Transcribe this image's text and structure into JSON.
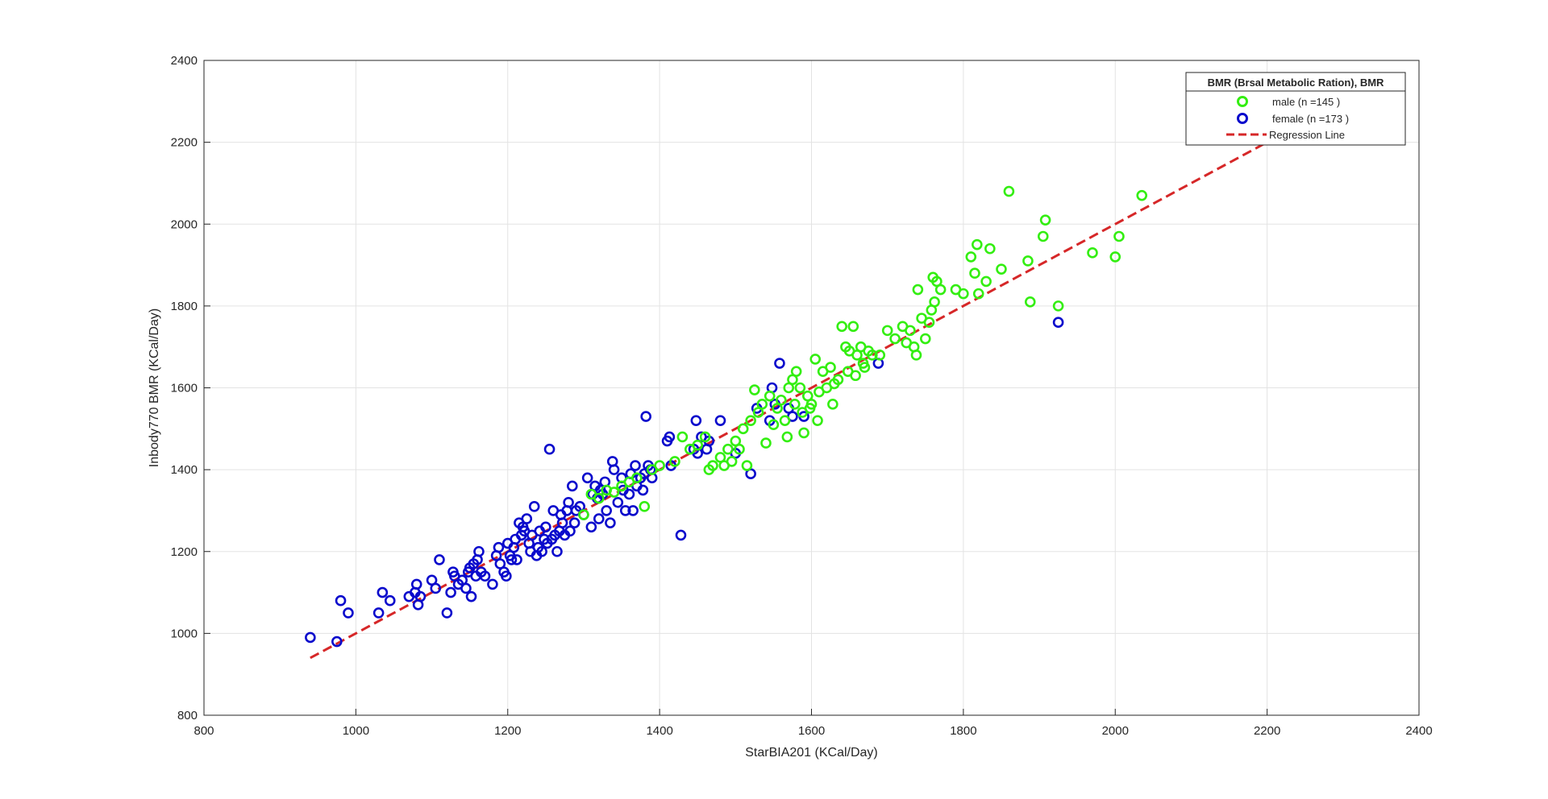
{
  "chart_data": {
    "type": "scatter",
    "xlabel": "StarBIA201 (KCal/Day)",
    "ylabel": "Inbody770 BMR (KCal/Day)",
    "xlim": [
      800,
      2400
    ],
    "ylim": [
      800,
      2400
    ],
    "xticks": [
      "800",
      "1000",
      "1200",
      "1400",
      "1600",
      "1800",
      "2000",
      "2200",
      "2400"
    ],
    "yticks": [
      "800",
      "1000",
      "1200",
      "1400",
      "1600",
      "1800",
      "2000",
      "2200",
      "2400"
    ],
    "grid": true,
    "legend": {
      "title": "BMR  (Brsal Metabolic Ration), BMR",
      "placement": "top-right"
    },
    "regression": {
      "name": "Regression Line",
      "color": "#d62728",
      "x": [
        940,
        2200
      ],
      "y": [
        940,
        2200
      ]
    },
    "series": [
      {
        "name": "male (n =145 )",
        "color": "#33ee11",
        "marker": "circle",
        "points": [
          [
            1300,
            1290
          ],
          [
            1310,
            1340
          ],
          [
            1320,
            1330
          ],
          [
            1330,
            1350
          ],
          [
            1340,
            1345
          ],
          [
            1350,
            1360
          ],
          [
            1360,
            1370
          ],
          [
            1370,
            1380
          ],
          [
            1380,
            1310
          ],
          [
            1390,
            1400
          ],
          [
            1400,
            1410
          ],
          [
            1420,
            1420
          ],
          [
            1430,
            1480
          ],
          [
            1440,
            1450
          ],
          [
            1450,
            1460
          ],
          [
            1460,
            1480
          ],
          [
            1465,
            1400
          ],
          [
            1470,
            1410
          ],
          [
            1480,
            1430
          ],
          [
            1485,
            1410
          ],
          [
            1490,
            1450
          ],
          [
            1495,
            1420
          ],
          [
            1500,
            1470
          ],
          [
            1505,
            1450
          ],
          [
            1510,
            1500
          ],
          [
            1515,
            1410
          ],
          [
            1520,
            1520
          ],
          [
            1525,
            1595
          ],
          [
            1530,
            1540
          ],
          [
            1535,
            1560
          ],
          [
            1540,
            1465
          ],
          [
            1545,
            1580
          ],
          [
            1550,
            1510
          ],
          [
            1555,
            1550
          ],
          [
            1560,
            1570
          ],
          [
            1565,
            1520
          ],
          [
            1568,
            1480
          ],
          [
            1570,
            1600
          ],
          [
            1575,
            1620
          ],
          [
            1578,
            1560
          ],
          [
            1580,
            1640
          ],
          [
            1585,
            1600
          ],
          [
            1588,
            1540
          ],
          [
            1590,
            1490
          ],
          [
            1595,
            1580
          ],
          [
            1598,
            1550
          ],
          [
            1600,
            1560
          ],
          [
            1605,
            1670
          ],
          [
            1608,
            1520
          ],
          [
            1610,
            1590
          ],
          [
            1615,
            1640
          ],
          [
            1620,
            1600
          ],
          [
            1625,
            1650
          ],
          [
            1628,
            1560
          ],
          [
            1630,
            1610
          ],
          [
            1635,
            1620
          ],
          [
            1640,
            1750
          ],
          [
            1645,
            1700
          ],
          [
            1648,
            1640
          ],
          [
            1650,
            1690
          ],
          [
            1655,
            1750
          ],
          [
            1658,
            1630
          ],
          [
            1660,
            1680
          ],
          [
            1665,
            1700
          ],
          [
            1668,
            1660
          ],
          [
            1670,
            1650
          ],
          [
            1675,
            1690
          ],
          [
            1680,
            1680
          ],
          [
            1690,
            1680
          ],
          [
            1700,
            1740
          ],
          [
            1710,
            1720
          ],
          [
            1720,
            1750
          ],
          [
            1725,
            1710
          ],
          [
            1730,
            1740
          ],
          [
            1735,
            1700
          ],
          [
            1738,
            1680
          ],
          [
            1740,
            1840
          ],
          [
            1745,
            1770
          ],
          [
            1750,
            1720
          ],
          [
            1755,
            1760
          ],
          [
            1758,
            1790
          ],
          [
            1760,
            1870
          ],
          [
            1762,
            1810
          ],
          [
            1765,
            1860
          ],
          [
            1770,
            1840
          ],
          [
            1790,
            1840
          ],
          [
            1800,
            1830
          ],
          [
            1810,
            1920
          ],
          [
            1815,
            1880
          ],
          [
            1818,
            1950
          ],
          [
            1820,
            1830
          ],
          [
            1830,
            1860
          ],
          [
            1835,
            1940
          ],
          [
            1850,
            1890
          ],
          [
            1860,
            2080
          ],
          [
            1885,
            1910
          ],
          [
            1888,
            1810
          ],
          [
            1905,
            1970
          ],
          [
            1908,
            2010
          ],
          [
            1925,
            1800
          ],
          [
            1970,
            1930
          ],
          [
            2000,
            1920
          ],
          [
            2005,
            1970
          ],
          [
            2035,
            2070
          ]
        ]
      },
      {
        "name": "female (n =173 )",
        "color": "#0a0acc",
        "marker": "circle",
        "points": [
          [
            940,
            990
          ],
          [
            975,
            980
          ],
          [
            980,
            1080
          ],
          [
            990,
            1050
          ],
          [
            1030,
            1050
          ],
          [
            1035,
            1100
          ],
          [
            1045,
            1080
          ],
          [
            1070,
            1090
          ],
          [
            1078,
            1100
          ],
          [
            1080,
            1120
          ],
          [
            1082,
            1070
          ],
          [
            1085,
            1090
          ],
          [
            1100,
            1130
          ],
          [
            1105,
            1110
          ],
          [
            1110,
            1180
          ],
          [
            1120,
            1050
          ],
          [
            1125,
            1100
          ],
          [
            1128,
            1150
          ],
          [
            1130,
            1140
          ],
          [
            1135,
            1120
          ],
          [
            1140,
            1130
          ],
          [
            1145,
            1110
          ],
          [
            1148,
            1150
          ],
          [
            1150,
            1160
          ],
          [
            1152,
            1090
          ],
          [
            1155,
            1170
          ],
          [
            1158,
            1140
          ],
          [
            1160,
            1180
          ],
          [
            1162,
            1200
          ],
          [
            1165,
            1150
          ],
          [
            1170,
            1140
          ],
          [
            1180,
            1120
          ],
          [
            1185,
            1190
          ],
          [
            1188,
            1210
          ],
          [
            1190,
            1170
          ],
          [
            1195,
            1150
          ],
          [
            1198,
            1140
          ],
          [
            1200,
            1220
          ],
          [
            1203,
            1190
          ],
          [
            1205,
            1180
          ],
          [
            1208,
            1210
          ],
          [
            1210,
            1230
          ],
          [
            1212,
            1180
          ],
          [
            1215,
            1270
          ],
          [
            1218,
            1240
          ],
          [
            1220,
            1260
          ],
          [
            1222,
            1250
          ],
          [
            1225,
            1280
          ],
          [
            1228,
            1220
          ],
          [
            1230,
            1200
          ],
          [
            1232,
            1240
          ],
          [
            1235,
            1310
          ],
          [
            1238,
            1190
          ],
          [
            1240,
            1210
          ],
          [
            1242,
            1250
          ],
          [
            1245,
            1200
          ],
          [
            1248,
            1230
          ],
          [
            1250,
            1260
          ],
          [
            1252,
            1220
          ],
          [
            1255,
            1450
          ],
          [
            1258,
            1230
          ],
          [
            1260,
            1300
          ],
          [
            1262,
            1240
          ],
          [
            1265,
            1200
          ],
          [
            1268,
            1250
          ],
          [
            1270,
            1290
          ],
          [
            1272,
            1270
          ],
          [
            1275,
            1240
          ],
          [
            1278,
            1300
          ],
          [
            1280,
            1320
          ],
          [
            1282,
            1250
          ],
          [
            1285,
            1360
          ],
          [
            1288,
            1270
          ],
          [
            1290,
            1300
          ],
          [
            1295,
            1310
          ],
          [
            1300,
            1290
          ],
          [
            1305,
            1380
          ],
          [
            1310,
            1260
          ],
          [
            1312,
            1340
          ],
          [
            1315,
            1360
          ],
          [
            1318,
            1330
          ],
          [
            1320,
            1280
          ],
          [
            1322,
            1350
          ],
          [
            1325,
            1340
          ],
          [
            1328,
            1370
          ],
          [
            1330,
            1300
          ],
          [
            1335,
            1270
          ],
          [
            1338,
            1420
          ],
          [
            1340,
            1400
          ],
          [
            1345,
            1320
          ],
          [
            1350,
            1380
          ],
          [
            1352,
            1350
          ],
          [
            1355,
            1300
          ],
          [
            1360,
            1340
          ],
          [
            1362,
            1390
          ],
          [
            1365,
            1300
          ],
          [
            1368,
            1410
          ],
          [
            1370,
            1360
          ],
          [
            1375,
            1380
          ],
          [
            1378,
            1350
          ],
          [
            1380,
            1390
          ],
          [
            1382,
            1530
          ],
          [
            1385,
            1410
          ],
          [
            1388,
            1400
          ],
          [
            1390,
            1380
          ],
          [
            1410,
            1470
          ],
          [
            1413,
            1480
          ],
          [
            1415,
            1410
          ],
          [
            1428,
            1240
          ],
          [
            1445,
            1450
          ],
          [
            1448,
            1520
          ],
          [
            1450,
            1440
          ],
          [
            1455,
            1480
          ],
          [
            1462,
            1450
          ],
          [
            1465,
            1470
          ],
          [
            1480,
            1520
          ],
          [
            1500,
            1440
          ],
          [
            1520,
            1390
          ],
          [
            1528,
            1550
          ],
          [
            1545,
            1520
          ],
          [
            1548,
            1600
          ],
          [
            1552,
            1560
          ],
          [
            1558,
            1660
          ],
          [
            1570,
            1550
          ],
          [
            1575,
            1530
          ],
          [
            1590,
            1530
          ],
          [
            1688,
            1660
          ],
          [
            1925,
            1760
          ]
        ]
      }
    ]
  },
  "colors": {
    "grid": "#e3e3e3",
    "axes": "#262626",
    "male": "#33ee11",
    "female": "#0a0acc",
    "regression": "#d62728"
  }
}
